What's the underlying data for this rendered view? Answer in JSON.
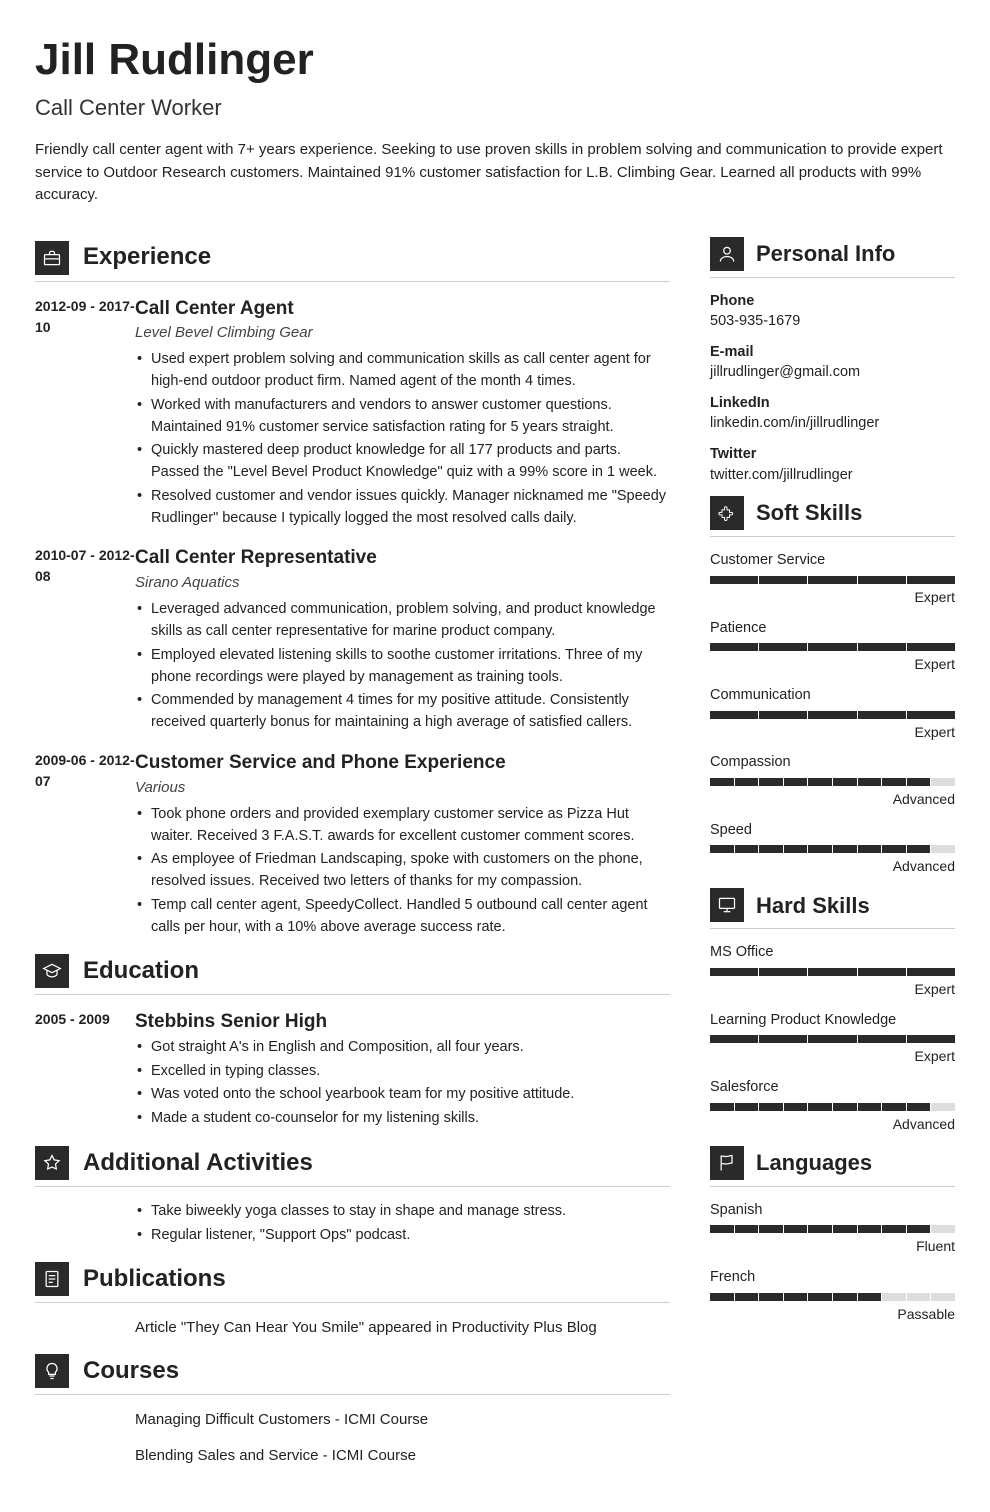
{
  "name": "Jill Rudlinger",
  "jobtitle": "Call Center Worker",
  "summary": "Friendly call center agent with 7+ years experience. Seeking to use proven skills in problem solving and communication to provide expert service to Outdoor Research customers. Maintained 91% customer satisfaction for L.B. Climbing Gear. Learned all products with 99% accuracy.",
  "sections": {
    "experience": "Experience",
    "education": "Education",
    "activities": "Additional Activities",
    "publications": "Publications",
    "courses": "Courses",
    "personal": "Personal Info",
    "soft": "Soft Skills",
    "hard": "Hard Skills",
    "languages": "Languages"
  },
  "experience": [
    {
      "date": "2012-09 - 2017-10",
      "title": "Call Center Agent",
      "sub": "Level Bevel Climbing Gear",
      "bullets": [
        "Used expert problem solving and communication skills as call center agent for high-end outdoor product firm. Named agent of the month 4 times.",
        "Worked with manufacturers and vendors to answer customer questions. Maintained 91% customer service satisfaction rating for 5 years straight.",
        "Quickly mastered deep product knowledge for all 177 products and parts. Passed the \"Level Bevel Product Knowledge\" quiz with a 99% score in 1 week.",
        "Resolved customer and vendor issues quickly. Manager nicknamed me \"Speedy Rudlinger\" because I typically logged the most resolved calls daily."
      ]
    },
    {
      "date": "2010-07 - 2012-08",
      "title": "Call Center Representative",
      "sub": "Sirano Aquatics",
      "bullets": [
        "Leveraged advanced communication, problem solving, and product knowledge skills as call center representative for marine product company.",
        "Employed elevated listening skills to soothe customer irritations. Three of my phone recordings were played by management as training tools.",
        "Commended by management 4 times for my positive attitude. Consistently received quarterly bonus for maintaining a high average of satisfied callers."
      ]
    },
    {
      "date": "2009-06 - 2012-07",
      "title": "Customer Service and Phone Experience",
      "sub": "Various",
      "bullets": [
        "Took phone orders and provided exemplary customer service as Pizza Hut waiter. Received 3 F.A.S.T. awards for excellent customer comment scores.",
        "As employee of Friedman Landscaping, spoke with customers on the phone, resolved issues. Received two letters of thanks for my compassion.",
        "Temp call center agent, SpeedyCollect. Handled 5 outbound call center agent calls per hour, with a 10% above average success rate."
      ]
    }
  ],
  "education": [
    {
      "date": "2005 - 2009",
      "title": "Stebbins Senior High",
      "bullets": [
        "Got straight A's in English and Composition, all four years.",
        "Excelled in typing classes.",
        "Was voted onto the school yearbook team for my positive attitude.",
        "Made a student co-counselor for my listening skills."
      ]
    }
  ],
  "activities": [
    "Take biweekly yoga classes to stay in shape and manage stress.",
    "Regular listener, \"Support Ops\" podcast."
  ],
  "publications": "Article \"They Can Hear You Smile\" appeared in Productivity Plus Blog",
  "courses": [
    "Managing Difficult Customers - ICMI Course",
    "Blending Sales and Service - ICMI Course"
  ],
  "personal": [
    {
      "label": "Phone",
      "value": "503-935-1679"
    },
    {
      "label": "E-mail",
      "value": "jillrudlinger@gmail.com"
    },
    {
      "label": "LinkedIn",
      "value": "linkedin.com/in/jillrudlinger"
    },
    {
      "label": "Twitter",
      "value": "twitter.com/jillrudlinger"
    }
  ],
  "soft_skills": [
    {
      "name": "Customer Service",
      "segments": 5,
      "fill": 5,
      "label": "Expert"
    },
    {
      "name": "Patience",
      "segments": 5,
      "fill": 5,
      "label": "Expert"
    },
    {
      "name": "Communication",
      "segments": 5,
      "fill": 5,
      "label": "Expert"
    },
    {
      "name": "Compassion",
      "segments": 10,
      "fill": 9,
      "label": "Advanced"
    },
    {
      "name": "Speed",
      "segments": 10,
      "fill": 9,
      "label": "Advanced"
    }
  ],
  "hard_skills": [
    {
      "name": "MS Office",
      "segments": 5,
      "fill": 5,
      "label": "Expert"
    },
    {
      "name": "Learning Product Knowledge",
      "segments": 5,
      "fill": 5,
      "label": "Expert"
    },
    {
      "name": "Salesforce",
      "segments": 10,
      "fill": 9,
      "label": "Advanced"
    }
  ],
  "languages": [
    {
      "name": "Spanish",
      "segments": 10,
      "fill": 9,
      "label": "Fluent"
    },
    {
      "name": "French",
      "segments": 10,
      "fill": 7,
      "label": "Passable"
    }
  ],
  "colors": {
    "icon_bg": "#2a2a2a",
    "bar_fill": "#2a2a2a",
    "bar_empty": "#ddd",
    "rule": "#ccc"
  }
}
